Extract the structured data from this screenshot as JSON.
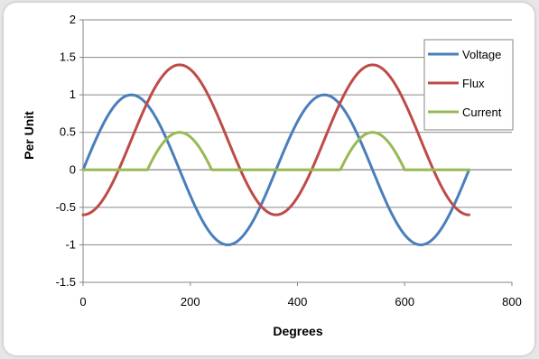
{
  "chart_data": {
    "type": "line",
    "title": "",
    "xlabel": "Degrees",
    "ylabel": "Per Unit",
    "xlim": [
      0,
      800
    ],
    "ylim": [
      -1.5,
      2
    ],
    "xticks": [
      0,
      200,
      400,
      600,
      800
    ],
    "yticks": [
      2,
      1.5,
      1,
      0.5,
      0,
      -0.5,
      -1,
      -1.5
    ],
    "ytick_labels": [
      "2",
      "1.5",
      "1",
      "0.5",
      "0",
      "-0.5",
      "-1",
      "-1.5"
    ],
    "grid": "horizontal",
    "legend_position": "top-right",
    "colors": {
      "Voltage": "#4a7ebb",
      "Flux": "#be4b48",
      "Current": "#98b954"
    },
    "series": [
      {
        "name": "Voltage",
        "x_start": 0,
        "x_end": 720,
        "amplitude": 1,
        "offset": 0,
        "note_formula": "sin"
      },
      {
        "name": "Flux",
        "x_start": 0,
        "x_end": 720,
        "amplitude": 1,
        "offset": 0.4,
        "note_formula": "-cos"
      },
      {
        "name": "Current",
        "x_start": 0,
        "x_end": 720,
        "threshold": 0.9,
        "note_formula": "max(flux-0.9,0)"
      }
    ]
  }
}
